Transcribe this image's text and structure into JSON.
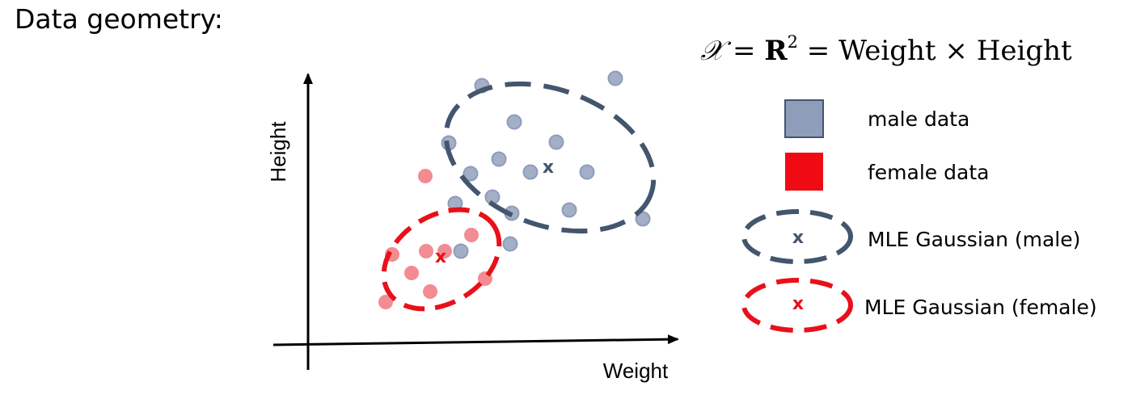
{
  "title": "Data geometry:",
  "formula": {
    "space_symbol": "𝒳",
    "equals1": " = ",
    "reals": "R",
    "power": "2",
    "equals2": " = Weight × Height"
  },
  "axes": {
    "x_label": "Weight",
    "y_label": "Height"
  },
  "legend": {
    "male_data": "male data",
    "female_data": "female data",
    "male_gaussian": "MLE Gaussian (male)",
    "female_gaussian": "MLE Gaussian (female)",
    "mean_marker": "x"
  },
  "colors": {
    "male": "#8e9db9",
    "male_fill": "#a3afc6",
    "male_ellipse": "#44556e",
    "female": "#f0525e",
    "female_fill": "#f28c92",
    "female_ellipse": "#e8101a",
    "axis": "#000000"
  }
}
